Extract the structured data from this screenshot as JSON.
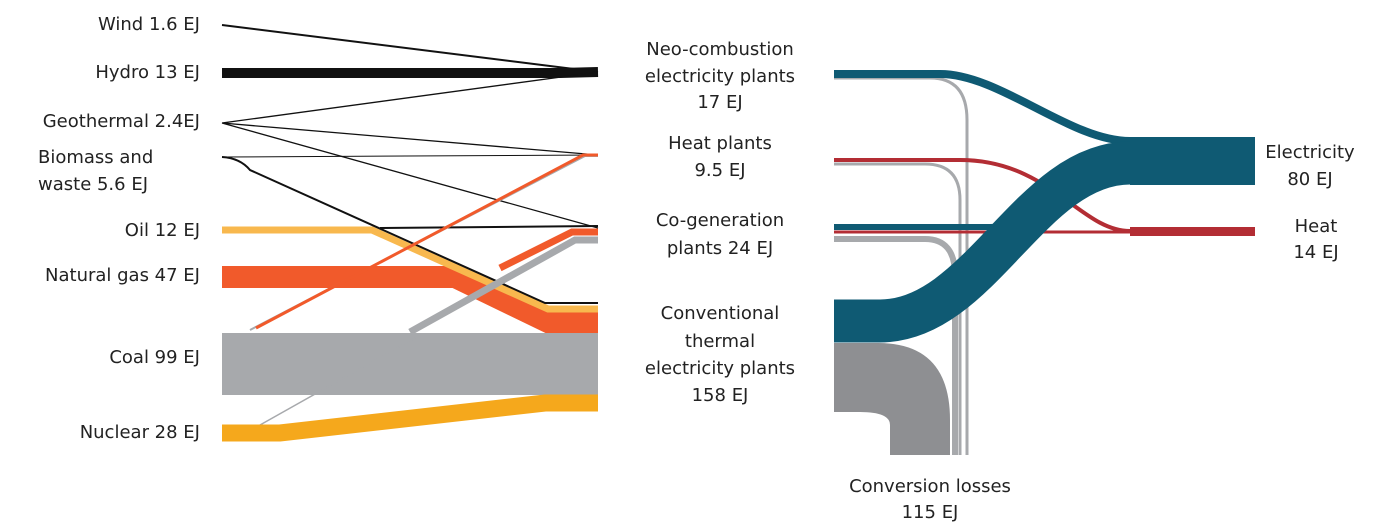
{
  "sources": [
    {
      "lines": [
        "Wind 1.6 EJ"
      ]
    },
    {
      "lines": [
        "Hydro 13 EJ"
      ]
    },
    {
      "lines": [
        "Geothermal 2.4EJ"
      ]
    },
    {
      "lines": [
        "Biomass and",
        "waste 5.6 EJ"
      ]
    },
    {
      "lines": [
        "Oil 12 EJ"
      ]
    },
    {
      "lines": [
        "Natural gas 47 EJ"
      ]
    },
    {
      "lines": [
        "Coal 99 EJ"
      ]
    },
    {
      "lines": [
        "Nuclear 28 EJ"
      ]
    }
  ],
  "plants": [
    {
      "lines": [
        "Neo-combustion",
        "electricity plants",
        "17 EJ"
      ]
    },
    {
      "lines": [
        "Heat plants",
        "9.5 EJ"
      ]
    },
    {
      "lines": [
        "Co-generation",
        "plants 24 EJ"
      ]
    },
    {
      "lines": [
        "Conventional",
        "thermal",
        "electricity plants",
        "158 EJ"
      ]
    }
  ],
  "outputs": [
    {
      "lines": [
        "Electricity",
        "80 EJ"
      ]
    },
    {
      "lines": [
        "Heat",
        "14 EJ"
      ]
    }
  ],
  "losses": {
    "lines": [
      "Conversion losses",
      "115 EJ"
    ]
  }
}
